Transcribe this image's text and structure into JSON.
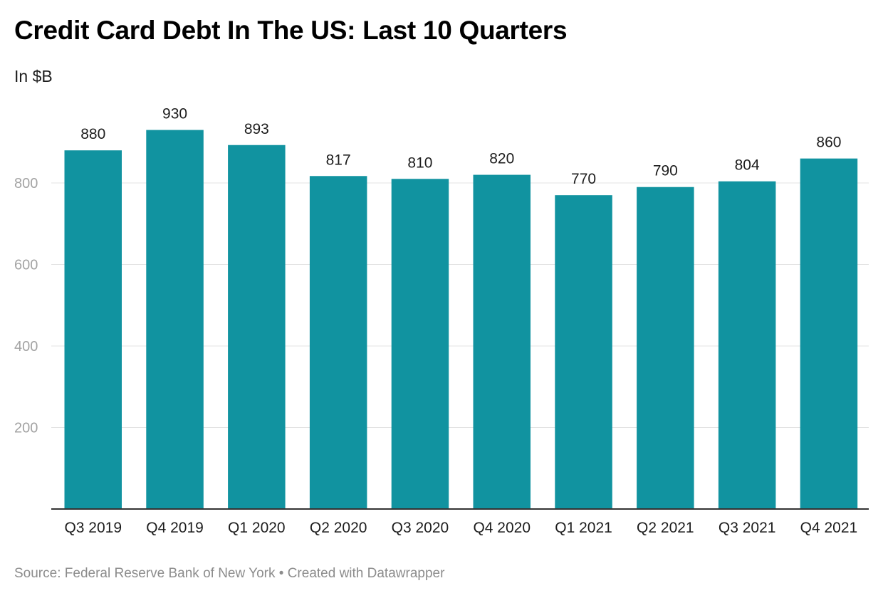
{
  "header": {
    "title": "Credit Card Debt In The US: Last 10 Quarters",
    "subtitle": "In $B"
  },
  "footer": {
    "source_label": "Source:",
    "source": "Federal Reserve Bank of New York",
    "separator": "•",
    "credit": "Created with Datawrapper"
  },
  "colors": {
    "bar": "#1193a0",
    "grid": "#e3e3e3",
    "axis": "#333333",
    "tick_label": "#a3a3a3",
    "category_label": "#1d1d1d",
    "value_label": "#1d1d1d"
  },
  "chart_data": {
    "type": "bar",
    "title": "Credit Card Debt In The US: Last 10 Quarters",
    "subtitle": "In $B",
    "categories": [
      "Q3 2019",
      "Q4 2019",
      "Q1 2020",
      "Q2 2020",
      "Q3 2020",
      "Q4 2020",
      "Q1 2021",
      "Q2 2021",
      "Q3 2021",
      "Q4 2021"
    ],
    "values": [
      880,
      930,
      893,
      817,
      810,
      820,
      770,
      790,
      804,
      860
    ],
    "value_labels": [
      "880",
      "930",
      "893",
      "817",
      "810",
      "820",
      "770",
      "790",
      "804",
      "860"
    ],
    "yticks": [
      200,
      400,
      600,
      800
    ],
    "ytick_labels": [
      "200",
      "400",
      "600",
      "800"
    ],
    "ylim": [
      0,
      930
    ],
    "grid": true,
    "legend": "none"
  }
}
